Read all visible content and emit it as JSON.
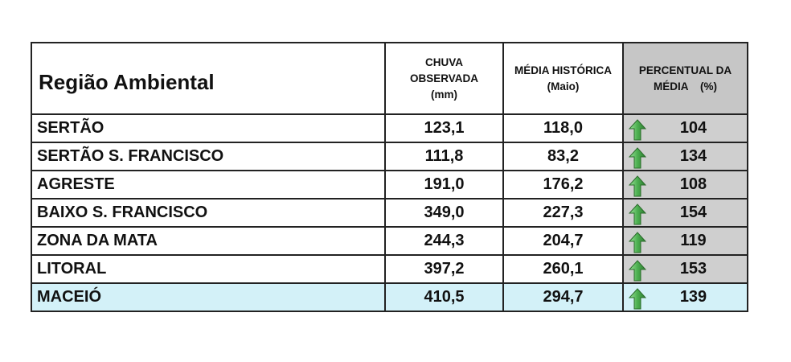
{
  "table": {
    "headers": {
      "region": "Região Ambiental",
      "observed": [
        "CHUVA",
        "OBSERVADA",
        "(mm)"
      ],
      "historical": [
        "MÉDIA HISTÓRICA",
        "(Maio)"
      ],
      "percent": [
        "PERCENTUAL DA",
        "MÉDIA    (%)"
      ]
    },
    "rows": [
      {
        "region": "SERTÃO",
        "observed": "123,1",
        "historical": "118,0",
        "percent": "104",
        "trend_icon": "arrow-up-icon"
      },
      {
        "region": "SERTÃO S. FRANCISCO",
        "observed": "111,8",
        "historical": "83,2",
        "percent": "134",
        "trend_icon": "arrow-up-icon"
      },
      {
        "region": "AGRESTE",
        "observed": "191,0",
        "historical": "176,2",
        "percent": "108",
        "trend_icon": "arrow-up-icon"
      },
      {
        "region": "BAIXO S. FRANCISCO",
        "observed": "349,0",
        "historical": "227,3",
        "percent": "154",
        "trend_icon": "arrow-up-icon"
      },
      {
        "region": "ZONA DA MATA",
        "observed": "244,3",
        "historical": "204,7",
        "percent": "119",
        "trend_icon": "arrow-up-icon"
      },
      {
        "region": "LITORAL",
        "observed": "397,2",
        "historical": "260,1",
        "percent": "153",
        "trend_icon": "arrow-up-icon"
      },
      {
        "region": "MACEIÓ",
        "observed": "410,5",
        "historical": "294,7",
        "percent": "139",
        "trend_icon": "arrow-up-icon",
        "highlighted": true
      }
    ]
  },
  "colors": {
    "arrow": "#4caf50",
    "highlight_row": "#d3f1f8",
    "percent_column": "#cfcfcf"
  }
}
